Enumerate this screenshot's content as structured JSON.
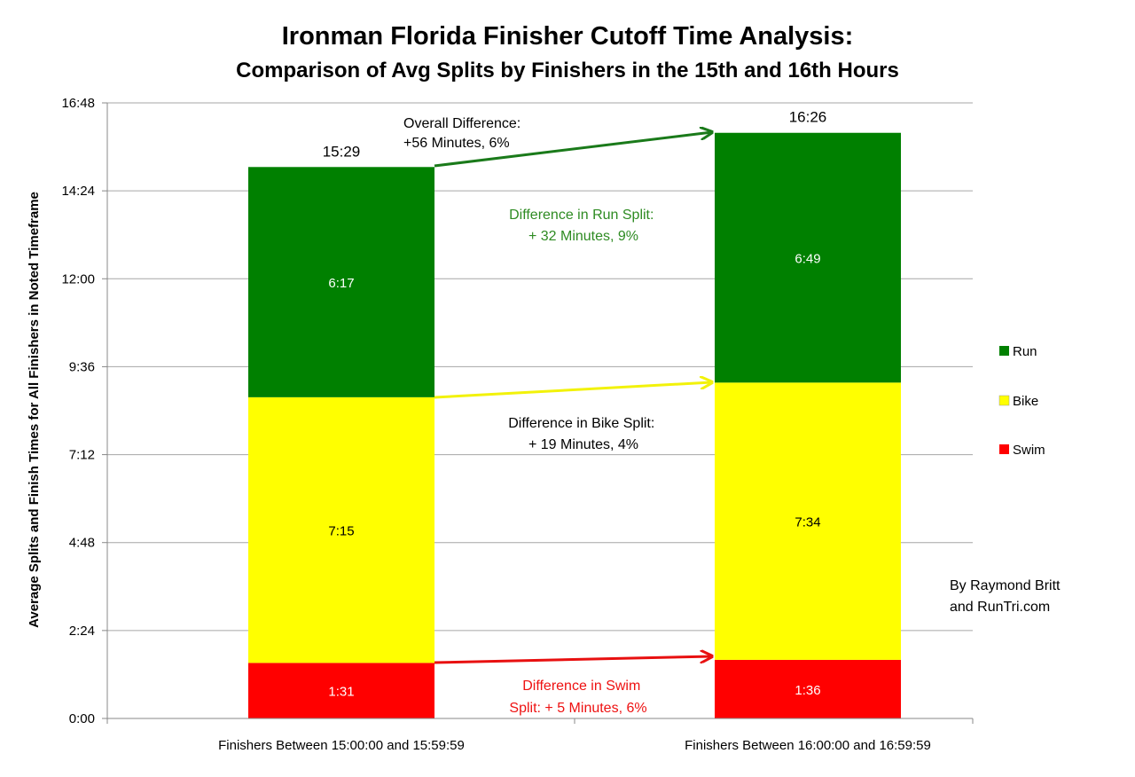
{
  "chart_data": {
    "type": "bar",
    "stacked": true,
    "title": "Ironman Florida Finisher Cutoff Time Analysis:",
    "subtitle": "Comparison of Avg Splits by Finishers in the 15th and 16th Hours",
    "xlabel": "",
    "ylabel": "Average Splits and Finish Times for All Finishers in Noted Timeframe",
    "yunit": "minutes",
    "ylim": [
      0,
      1008
    ],
    "yticks": [
      {
        "value": 0,
        "label": "0:00"
      },
      {
        "value": 144,
        "label": "2:24"
      },
      {
        "value": 288,
        "label": "4:48"
      },
      {
        "value": 432,
        "label": "7:12"
      },
      {
        "value": 576,
        "label": "9:36"
      },
      {
        "value": 720,
        "label": "12:00"
      },
      {
        "value": 864,
        "label": "14:24"
      },
      {
        "value": 1008,
        "label": "16:48"
      }
    ],
    "grid": true,
    "legend_position": "right",
    "categories": [
      "Finishers Between 15:00:00 and 15:59:59",
      "Finishers Between 16:00:00 and 16:59:59"
    ],
    "series": [
      {
        "name": "Swim",
        "color": "#ff0000",
        "values": [
          91,
          96
        ],
        "labels": [
          "1:31",
          "1:36"
        ]
      },
      {
        "name": "Bike",
        "color": "#ffff00",
        "values": [
          435,
          454
        ],
        "labels": [
          "7:15",
          "7:34"
        ]
      },
      {
        "name": "Run",
        "color": "#008000",
        "values": [
          377,
          409
        ],
        "labels": [
          "6:17",
          "6:49"
        ]
      }
    ],
    "totals": {
      "values": [
        929,
        986
      ],
      "labels": [
        "15:29",
        "16:26"
      ]
    },
    "annotations": [
      {
        "id": "overall",
        "lines": [
          "Overall Difference:",
          "+56 Minutes, 6%"
        ],
        "color": "#000000",
        "arrow_color": "#1a7a1a"
      },
      {
        "id": "run",
        "lines": [
          "Difference in Run Split:",
          "+ 32 Minutes, 9%"
        ],
        "color": "#2e8b22"
      },
      {
        "id": "bike",
        "lines": [
          "Difference in Bike Split:",
          "+ 19 Minutes, 4%"
        ],
        "color": "#000000",
        "arrow_color": "#f2f20a"
      },
      {
        "id": "swim",
        "lines": [
          "Difference in Swim",
          "Split: + 5 Minutes, 6%"
        ],
        "color": "#ee1111",
        "arrow_color": "#e81010"
      }
    ],
    "credit": [
      "By Raymond Britt",
      "and RunTri.com"
    ]
  }
}
